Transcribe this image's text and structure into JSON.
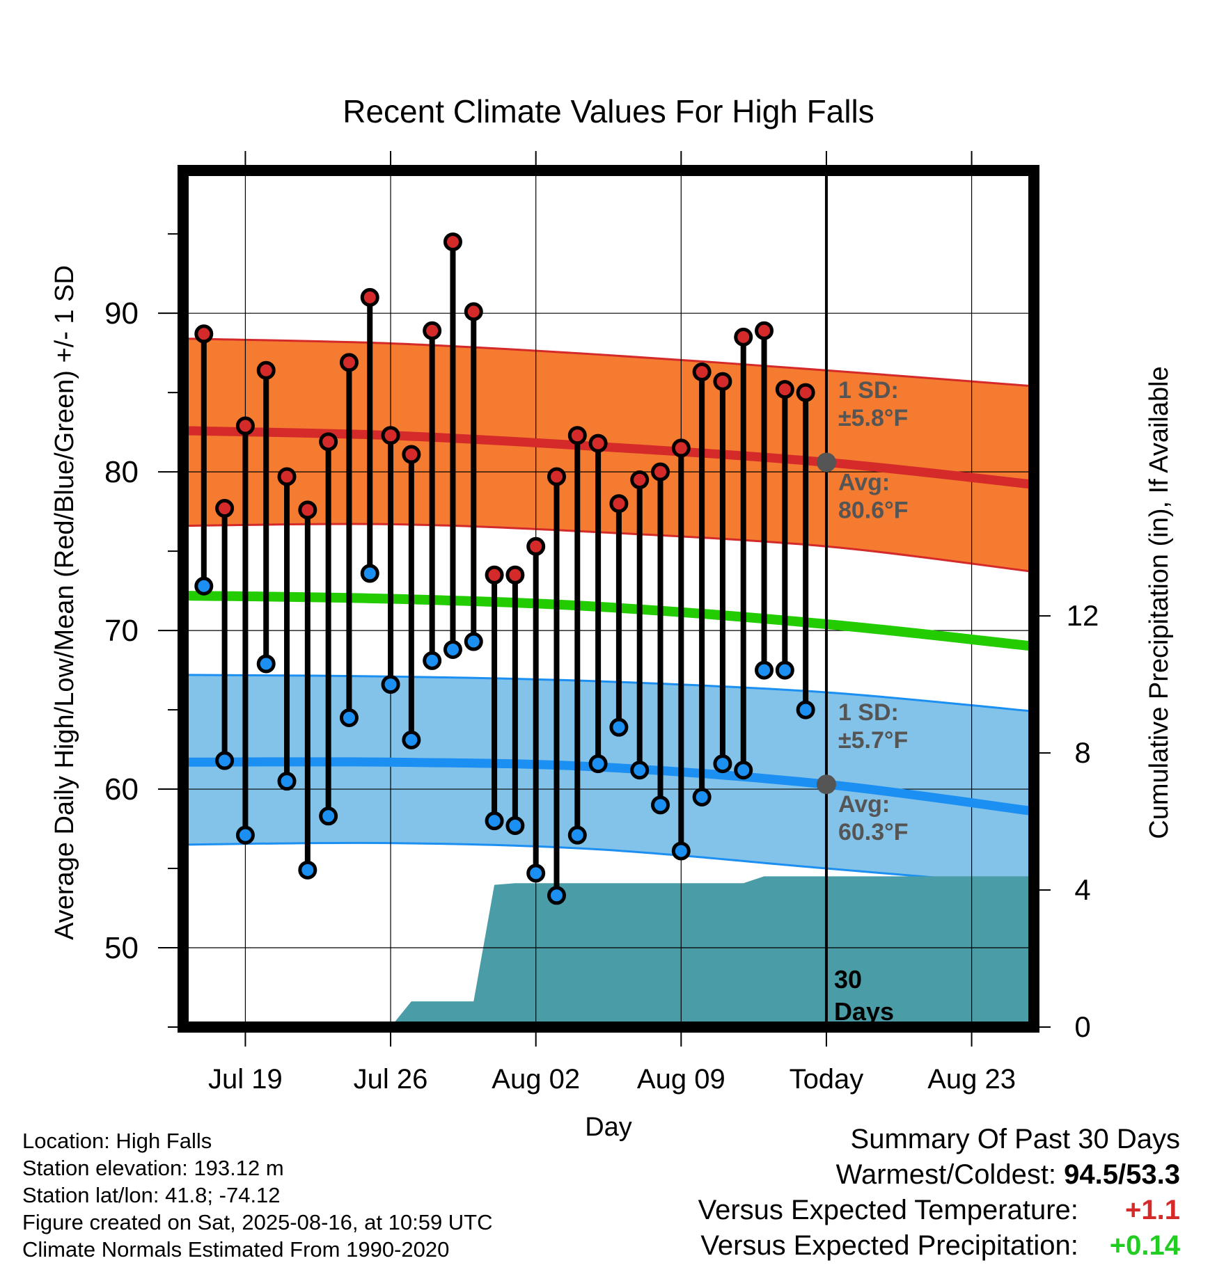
{
  "chart_data": {
    "type": "line",
    "title": "Recent Climate Values For High Falls",
    "xlabel": "Day",
    "ylabel": "Average Daily High/Low/Mean (Red/Blue/Green) +/- 1 SD",
    "y2label": "Cumulative Precipitation (in), If Available",
    "ylim": [
      45,
      99
    ],
    "y2lim": [
      0,
      25
    ],
    "yticks": [
      50,
      60,
      70,
      80,
      90
    ],
    "y2ticks": [
      0,
      4,
      8,
      12
    ],
    "xlim": [
      "2025-07-16",
      "2025-08-26"
    ],
    "xticks": [
      {
        "date": "2025-07-19",
        "label": "Jul 19"
      },
      {
        "date": "2025-07-26",
        "label": "Jul 26"
      },
      {
        "date": "2025-08-02",
        "label": "Aug 02"
      },
      {
        "date": "2025-08-09",
        "label": "Aug 09"
      },
      {
        "date": "2025-08-16",
        "label": "Today"
      },
      {
        "date": "2025-08-23",
        "label": "Aug 23"
      }
    ],
    "grid": true,
    "today_date": "2025-08-16",
    "today_label": "30 Days",
    "daily": {
      "dates": [
        "2025-07-17",
        "2025-07-18",
        "2025-07-19",
        "2025-07-20",
        "2025-07-21",
        "2025-07-22",
        "2025-07-23",
        "2025-07-24",
        "2025-07-25",
        "2025-07-26",
        "2025-07-27",
        "2025-07-28",
        "2025-07-29",
        "2025-07-30",
        "2025-07-31",
        "2025-08-01",
        "2025-08-02",
        "2025-08-03",
        "2025-08-04",
        "2025-08-05",
        "2025-08-06",
        "2025-08-07",
        "2025-08-08",
        "2025-08-09",
        "2025-08-10",
        "2025-08-11",
        "2025-08-12",
        "2025-08-13",
        "2025-08-14",
        "2025-08-15"
      ],
      "high": [
        88.7,
        77.7,
        82.9,
        86.4,
        79.7,
        77.6,
        81.9,
        86.9,
        91.0,
        82.3,
        81.1,
        88.9,
        94.5,
        90.1,
        73.5,
        73.5,
        75.3,
        79.7,
        82.3,
        81.8,
        78.0,
        79.5,
        80.0,
        81.5,
        86.3,
        85.7,
        88.5,
        88.9,
        85.2,
        85.0
      ],
      "low": [
        72.8,
        61.8,
        57.1,
        67.9,
        60.5,
        54.9,
        58.3,
        64.5,
        73.6,
        66.6,
        63.1,
        68.1,
        68.8,
        69.3,
        58.0,
        57.7,
        54.7,
        53.3,
        57.1,
        61.6,
        63.9,
        61.2,
        59.0,
        56.1,
        59.5,
        61.6,
        61.2,
        67.5,
        67.5,
        65.0
      ]
    },
    "normals": {
      "dates": [
        "2025-07-16",
        "2025-07-26",
        "2025-08-05",
        "2025-08-16",
        "2025-08-26"
      ],
      "high_avg": [
        82.6,
        82.3,
        81.6,
        80.6,
        79.2
      ],
      "high_sd_upper": [
        88.4,
        88.1,
        87.4,
        86.4,
        85.4
      ],
      "high_sd_lower": [
        76.6,
        76.7,
        76.2,
        75.3,
        73.7
      ],
      "low_avg": [
        61.7,
        61.7,
        61.4,
        60.3,
        58.6
      ],
      "low_sd_upper": [
        67.2,
        67.1,
        66.8,
        66.1,
        64.9
      ],
      "low_sd_lower": [
        56.5,
        56.6,
        56.2,
        55.0,
        53.9
      ],
      "mean": [
        72.2,
        72.0,
        71.5,
        70.4,
        69.0
      ]
    },
    "precipitation": {
      "dates": [
        "2025-07-16",
        "2025-07-26",
        "2025-07-27",
        "2025-07-30",
        "2025-07-31",
        "2025-08-01",
        "2025-08-12",
        "2025-08-13",
        "2025-08-26"
      ],
      "cumulative": [
        0,
        0,
        0.75,
        0.75,
        4.15,
        4.2,
        4.2,
        4.4,
        4.4
      ]
    },
    "annotations": {
      "high_sd_label": "1 SD:",
      "high_sd_value": "±5.8°F",
      "high_avg_label": "Avg:",
      "high_avg_value": "80.6°F",
      "low_sd_label": "1 SD:",
      "low_sd_value": "±5.7°F",
      "low_avg_label": "Avg:",
      "low_avg_value": "60.3°F"
    }
  },
  "colors": {
    "high_band": "#f47b2f",
    "high_line": "#d42a2a",
    "low_band": "#84c3e9",
    "low_line": "#1b8ff2",
    "mean_line": "#22cc00",
    "precip": "#4a9ca6",
    "high_dot": "#d42a2a",
    "low_dot": "#1b8ff2",
    "marker": "#555555",
    "annotation_text": "#555555",
    "positive_temp": "#d42a2a",
    "positive_precip": "#22cc22"
  },
  "info": {
    "location": "Location: High Falls",
    "elevation": "Station elevation: 193.12 m",
    "latlon": "Station lat/lon: 41.8; -74.12",
    "created": "Figure created on Sat, 2025-08-16, at 10:59 UTC",
    "normals": "Climate Normals Estimated From 1990-2020"
  },
  "summary": {
    "title": "Summary Of Past 30 Days",
    "warm_cold_label": "Warmest/Coldest:",
    "warm_cold_value": "94.5/53.3",
    "temp_label": "Versus Expected Temperature:",
    "temp_value": "+1.1",
    "precip_label": "Versus Expected Precipitation:",
    "precip_value": "+0.14"
  }
}
